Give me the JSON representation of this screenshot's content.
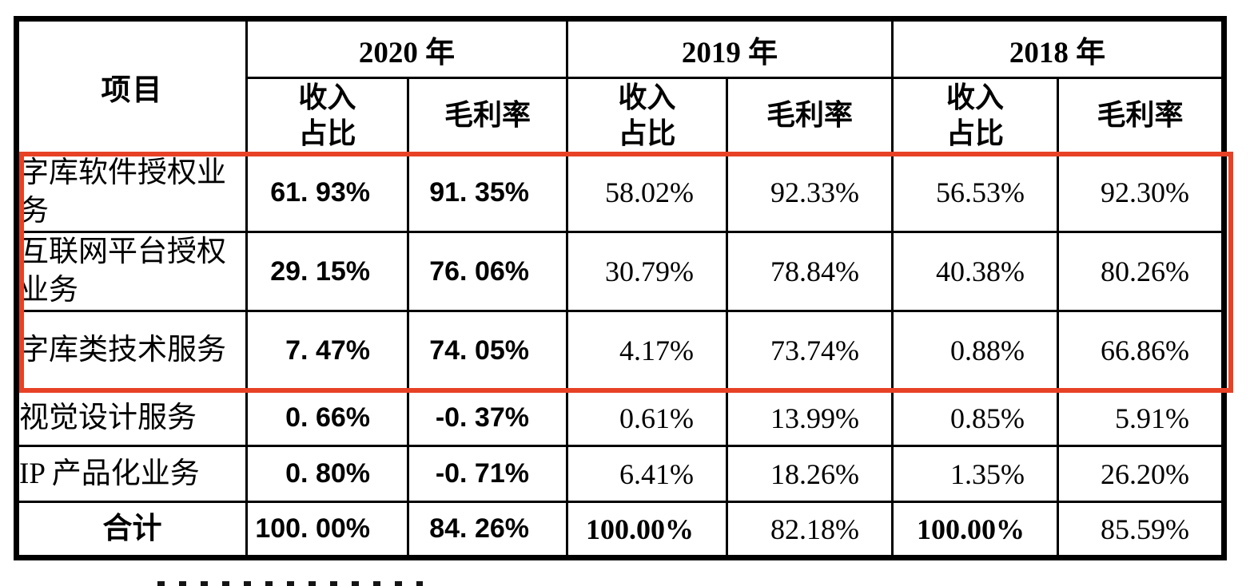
{
  "table": {
    "corner_header": "项目",
    "year_groups": [
      {
        "label": "2020 年"
      },
      {
        "label": "2019 年"
      },
      {
        "label": "2018 年"
      }
    ],
    "sub_headers": {
      "revenue_line1": "收入",
      "revenue_line2": "占比",
      "margin": "毛利率"
    },
    "rows": [
      {
        "label": "字库软件授权业务",
        "values": [
          "61. 93%",
          "91. 35%",
          "58.02%",
          "92.33%",
          "56.53%",
          "92.30%"
        ],
        "is_total": false
      },
      {
        "label": "互联网平台授权业务",
        "values": [
          "29. 15%",
          "76. 06%",
          "30.79%",
          "78.84%",
          "40.38%",
          "80.26%"
        ],
        "is_total": false
      },
      {
        "label": "字库类技术服务",
        "values": [
          "7. 47%",
          "74. 05%",
          "4.17%",
          "73.74%",
          "0.88%",
          "66.86%"
        ],
        "is_total": false
      },
      {
        "label": "视觉设计服务",
        "values": [
          "0. 66%",
          "-0. 37%",
          "0.61%",
          "13.99%",
          "0.85%",
          "5.91%"
        ],
        "is_total": false
      },
      {
        "label": "IP 产品化业务",
        "values": [
          "0. 80%",
          "-0. 71%",
          "6.41%",
          "18.26%",
          "1.35%",
          "26.20%"
        ],
        "is_total": false
      },
      {
        "label": "合计",
        "values": [
          "100. 00%",
          "84. 26%",
          "100.00%",
          "82.18%",
          "100.00%",
          "85.59%"
        ],
        "is_total": true
      }
    ],
    "highlight": {
      "color": "#e74226"
    },
    "border_color": "#000000"
  }
}
